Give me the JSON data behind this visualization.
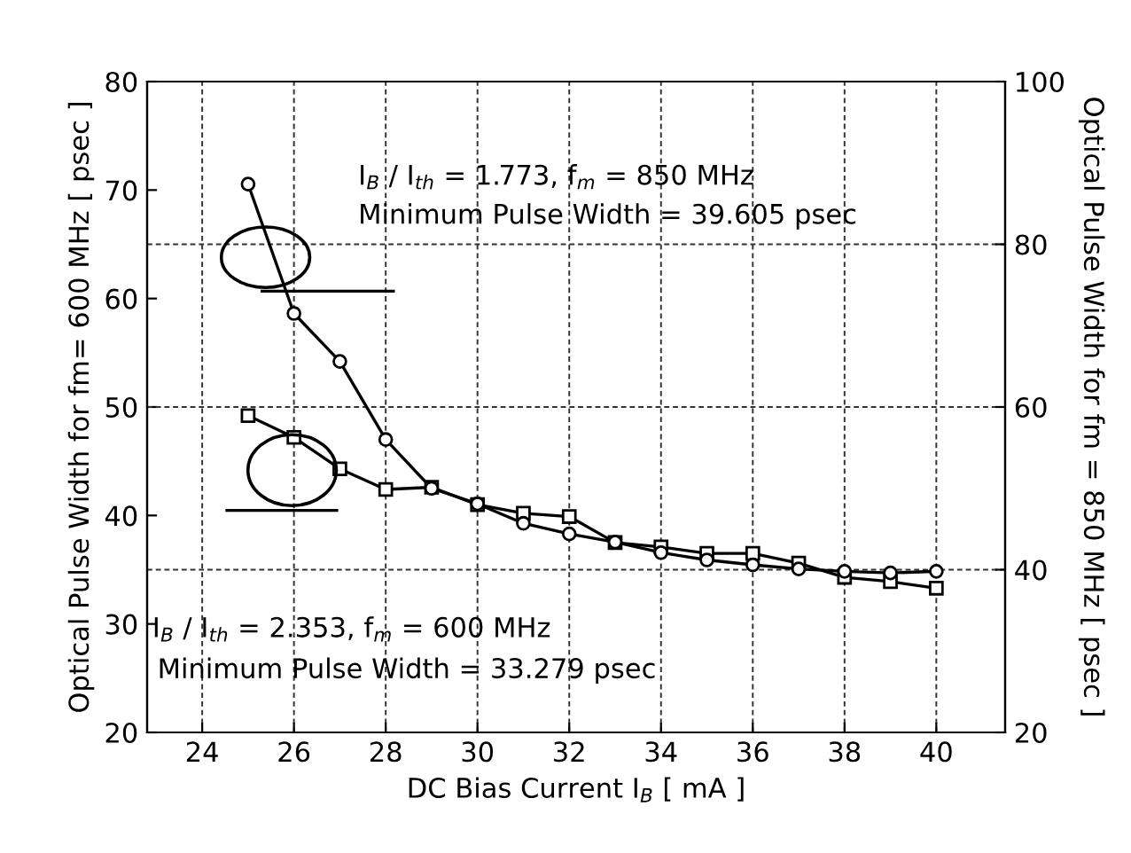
{
  "chart_data": {
    "type": "line",
    "xlabel": "DC Bias Current I$_{B}$ [ mA ]",
    "ylabel": "Optical Pulse Width for fm= 600 MHz [ psec ]",
    "y2label": "Optical Pulse Width for fm = 850 MHz [ psec ]",
    "x": [
      25,
      26,
      27,
      28,
      29,
      30,
      31,
      32,
      33,
      34,
      35,
      36,
      37,
      38,
      39,
      40
    ],
    "series": [
      {
        "color": "#000000",
        "marker": "circle",
        "axis": "y2",
        "values": [
          87.4,
          71.5,
          65.6,
          56.0,
          50.0,
          48.1,
          45.7,
          44.4,
          43.4,
          42.1,
          41.2,
          40.6,
          40.1,
          39.8,
          39.6,
          39.8
        ]
      },
      {
        "color": "#000000",
        "marker": "square",
        "axis": "y",
        "values": [
          49.2,
          47.2,
          44.3,
          42.4,
          42.6,
          41.0,
          40.2,
          39.9,
          37.5,
          37.1,
          36.5,
          36.5,
          35.6,
          34.3,
          33.9,
          33.3
        ]
      }
    ],
    "xlim": [
      22.8,
      41.5
    ],
    "xticks": [
      24,
      26,
      28,
      30,
      32,
      34,
      36,
      38,
      40
    ],
    "ylim": [
      20,
      80
    ],
    "yticks": [
      20,
      30,
      40,
      50,
      60,
      70,
      80
    ],
    "y2lim": [
      20,
      100
    ],
    "y2ticks": [
      20,
      40,
      60,
      80,
      100
    ],
    "grid": true,
    "annotations": [
      "I$_{B}$ / I$_{th}$ = 1.773, f$_{m}$ = 850 MHz",
      "Minimum Pulse Width = 39.605 psec",
      "I$_{B}$ / I$_{th}$ = 2.353, f$_{m}$ = 600 MHz",
      "Minimum Pulse Width = 33.279 psec"
    ]
  }
}
